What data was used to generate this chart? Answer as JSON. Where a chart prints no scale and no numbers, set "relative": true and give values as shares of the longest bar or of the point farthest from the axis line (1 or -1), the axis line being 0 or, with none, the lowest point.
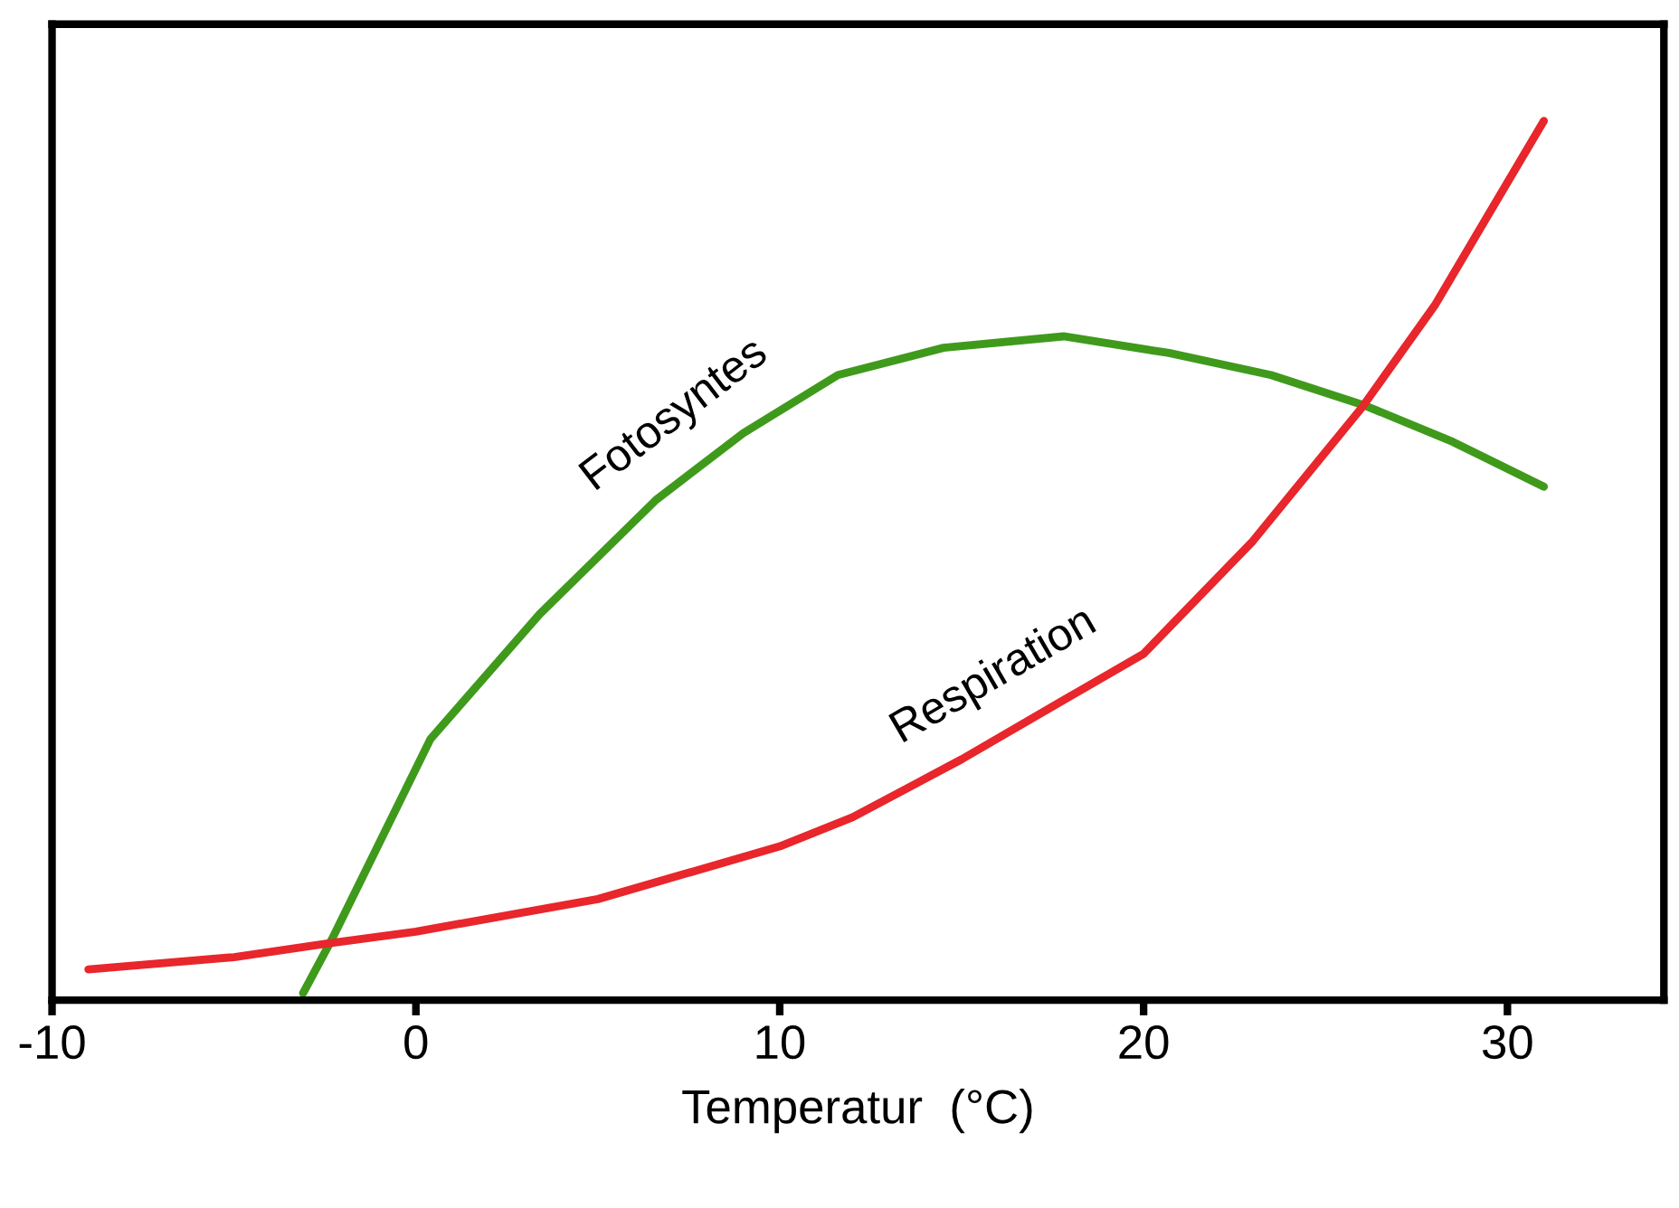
{
  "chart_data": {
    "type": "line",
    "xlabel": "Temperatur  (°C)",
    "relative": true,
    "xlim": [
      -10,
      34.3
    ],
    "xticks": [
      -10,
      0,
      10,
      20,
      30
    ],
    "grid": false,
    "legend": false,
    "marker": "none",
    "line_style": "solid",
    "series": [
      {
        "name": "Fotosyntes",
        "color": "#3f9a1c",
        "x": [
          -3.1,
          -2.3,
          0.4,
          3.4,
          6.6,
          9,
          11.6,
          14.5,
          17.8,
          20.7,
          23.5,
          26.1,
          28.5,
          31
        ],
        "values": [
          0.008,
          0.07,
          0.297,
          0.439,
          0.569,
          0.645,
          0.711,
          0.742,
          0.755,
          0.736,
          0.711,
          0.676,
          0.635,
          0.584
        ]
      },
      {
        "name": "Respiration",
        "color": "#e8262b",
        "x": [
          -9,
          -5,
          -2.5,
          0,
          5,
          10,
          12,
          15,
          18,
          20,
          23,
          26,
          28,
          31
        ],
        "values": [
          0.035,
          0.049,
          0.064,
          0.078,
          0.115,
          0.175,
          0.208,
          0.274,
          0.346,
          0.394,
          0.522,
          0.674,
          0.79,
          1.0
        ]
      }
    ]
  }
}
